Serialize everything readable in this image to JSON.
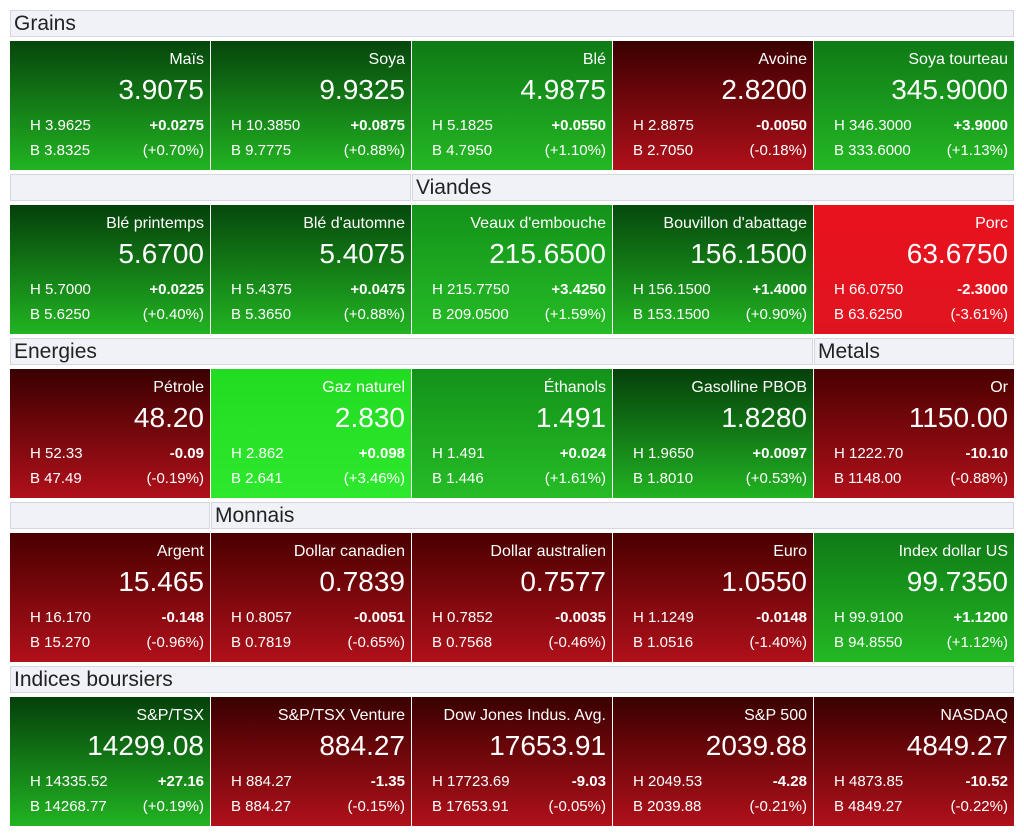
{
  "sections": {
    "grains": "Grains",
    "viandes": "Viandes",
    "energies": "Energies",
    "metals": "Metals",
    "monnais": "Monnais",
    "indices": "Indices boursiers"
  },
  "tiles": [
    {
      "name": "Maïs",
      "price": "3.9075",
      "high": "H 3.9625",
      "low": "B 3.8325",
      "change": "+0.0275",
      "pct": "(+0.70%)",
      "top": "#06460c",
      "bot": "#22b322"
    },
    {
      "name": "Soya",
      "price": "9.9325",
      "high": "H 10.3850",
      "low": "B 9.7775",
      "change": "+0.0875",
      "pct": "(+0.88%)",
      "top": "#06460c",
      "bot": "#22b322"
    },
    {
      "name": "Blé",
      "price": "4.9875",
      "high": "H 5.1825",
      "low": "B 4.7950",
      "change": "+0.0550",
      "pct": "(+1.10%)",
      "top": "#0f7a16",
      "bot": "#24b824"
    },
    {
      "name": "Avoine",
      "price": "2.8200",
      "high": "H 2.8875",
      "low": "B 2.7050",
      "change": "-0.0050",
      "pct": "(-0.18%)",
      "top": "#3a0000",
      "bot": "#b0101a"
    },
    {
      "name": "Soya tourteau",
      "price": "345.9000",
      "high": "H 346.3000",
      "low": "B 333.6000",
      "change": "+3.9000",
      "pct": "(+1.13%)",
      "top": "#0f7a16",
      "bot": "#24b824"
    },
    {
      "name": "Blé printemps",
      "price": "5.6700",
      "high": "H 5.7000",
      "low": "B 5.6250",
      "change": "+0.0225",
      "pct": "(+0.40%)",
      "top": "#04400a",
      "bot": "#22b322"
    },
    {
      "name": "Blé d'automne",
      "price": "5.4075",
      "high": "H 5.4375",
      "low": "B 5.3650",
      "change": "+0.0475",
      "pct": "(+0.88%)",
      "top": "#06480c",
      "bot": "#22b322"
    },
    {
      "name": "Veaux d'embouche",
      "price": "215.6500",
      "high": "H 215.7750",
      "low": "B 209.0500",
      "change": "+3.4250",
      "pct": "(+1.59%)",
      "top": "#13921a",
      "bot": "#26bc26"
    },
    {
      "name": "Bouvillon d'abattage",
      "price": "156.1500",
      "high": "H 156.1500",
      "low": "B 153.1500",
      "change": "+1.4000",
      "pct": "(+0.90%)",
      "top": "#06480c",
      "bot": "#22b322"
    },
    {
      "name": "Porc",
      "price": "63.6750",
      "high": "H 66.0750",
      "low": "B 63.6250",
      "change": "-2.3000",
      "pct": "(-3.61%)",
      "top": "#e8121e",
      "bot": "#e0141f"
    },
    {
      "name": "Pétrole",
      "price": "48.20",
      "high": "H 52.33",
      "low": "B 47.49",
      "change": "-0.09",
      "pct": "(-0.19%)",
      "top": "#3a0000",
      "bot": "#b0101a"
    },
    {
      "name": "Gaz naturel",
      "price": "2.830",
      "high": "H 2.862",
      "low": "B 2.641",
      "change": "+0.098",
      "pct": "(+3.46%)",
      "top": "#22dc22",
      "bot": "#2ee82e"
    },
    {
      "name": "Éthanols",
      "price": "1.491",
      "high": "H 1.491",
      "low": "B 1.446",
      "change": "+0.024",
      "pct": "(+1.61%)",
      "top": "#13921a",
      "bot": "#26bc26"
    },
    {
      "name": "Gasolline PBOB",
      "price": "1.8280",
      "high": "H 1.9650",
      "low": "B 1.8010",
      "change": "+0.0097",
      "pct": "(+0.53%)",
      "top": "#04400a",
      "bot": "#22b322"
    },
    {
      "name": "Or",
      "price": "1150.00",
      "high": "H 1222.70",
      "low": "B 1148.00",
      "change": "-10.10",
      "pct": "(-0.88%)",
      "top": "#4a0000",
      "bot": "#b0101a"
    },
    {
      "name": "Argent",
      "price": "15.465",
      "high": "H 16.170",
      "low": "B 15.270",
      "change": "-0.148",
      "pct": "(-0.96%)",
      "top": "#4a0000",
      "bot": "#b0101a"
    },
    {
      "name": "Dollar canadien",
      "price": "0.7839",
      "high": "H 0.8057",
      "low": "B 0.7819",
      "change": "-0.0051",
      "pct": "(-0.65%)",
      "top": "#4a0000",
      "bot": "#b0101a"
    },
    {
      "name": "Dollar australien",
      "price": "0.7577",
      "high": "H 0.7852",
      "low": "B 0.7568",
      "change": "-0.0035",
      "pct": "(-0.46%)",
      "top": "#4a0000",
      "bot": "#b0101a"
    },
    {
      "name": "Euro",
      "price": "1.0550",
      "high": "H 1.1249",
      "low": "B 1.0516",
      "change": "-0.0148",
      "pct": "(-1.40%)",
      "top": "#4a0000",
      "bot": "#b0101a"
    },
    {
      "name": "Index dollar US",
      "price": "99.7350",
      "high": "H 99.9100",
      "low": "B 94.8550",
      "change": "+1.1200",
      "pct": "(+1.12%)",
      "top": "#0f7a16",
      "bot": "#24b824"
    },
    {
      "name": "S&P/TSX",
      "price": "14299.08",
      "high": "H 14335.52",
      "low": "B 14268.77",
      "change": "+27.16",
      "pct": "(+0.19%)",
      "top": "#04400a",
      "bot": "#22b322"
    },
    {
      "name": "S&P/TSX Venture",
      "price": "884.27",
      "high": "H 884.27",
      "low": "B 884.27",
      "change": "-1.35",
      "pct": "(-0.15%)",
      "top": "#3a0000",
      "bot": "#b0101a"
    },
    {
      "name": "Dow Jones Indus. Avg.",
      "price": "17653.91",
      "high": "H 17723.69",
      "low": "B 17653.91",
      "change": "-9.03",
      "pct": "(-0.05%)",
      "top": "#3a0000",
      "bot": "#b0101a"
    },
    {
      "name": "S&P 500",
      "price": "2039.88",
      "high": "H 2049.53",
      "low": "B 2039.88",
      "change": "-4.28",
      "pct": "(-0.21%)",
      "top": "#3a0000",
      "bot": "#b0101a"
    },
    {
      "name": "NASDAQ",
      "price": "4849.27",
      "high": "H 4873.85",
      "low": "B 4849.27",
      "change": "-10.52",
      "pct": "(-0.22%)",
      "top": "#3a0000",
      "bot": "#b0101a"
    }
  ]
}
